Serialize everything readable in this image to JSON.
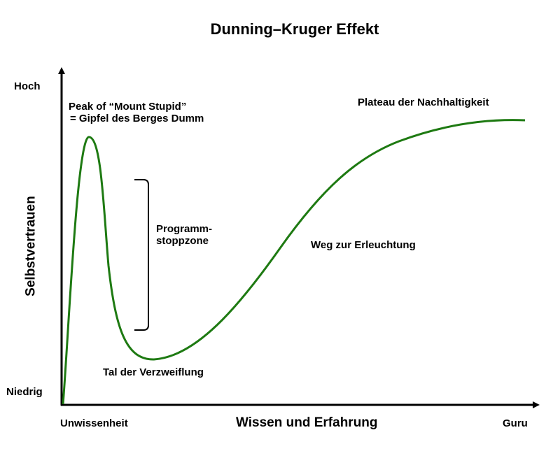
{
  "title": "Dunning–Kruger Effekt",
  "axes": {
    "x_title": "Wissen und Erfahrung",
    "y_title": "Selbstvertrauen",
    "x_low": "Unwissenheit",
    "x_high": "Guru",
    "y_low": "Niedrig",
    "y_high": "Hoch"
  },
  "annotations": {
    "peak": [
      "Peak of “Mount Stupid”",
      "= Gipfel des Berges Dumm"
    ],
    "stop_zone": [
      "Programm-",
      "stoppzone"
    ],
    "valley": "Tal der Verzweiflung",
    "slope": "Weg zur Erleuchtung",
    "plateau": "Plateau der Nachhaltigkeit"
  },
  "colors": {
    "curve": "#1e7a12",
    "axis": "#000000",
    "bracket": "#000000",
    "text": "#000000"
  }
}
